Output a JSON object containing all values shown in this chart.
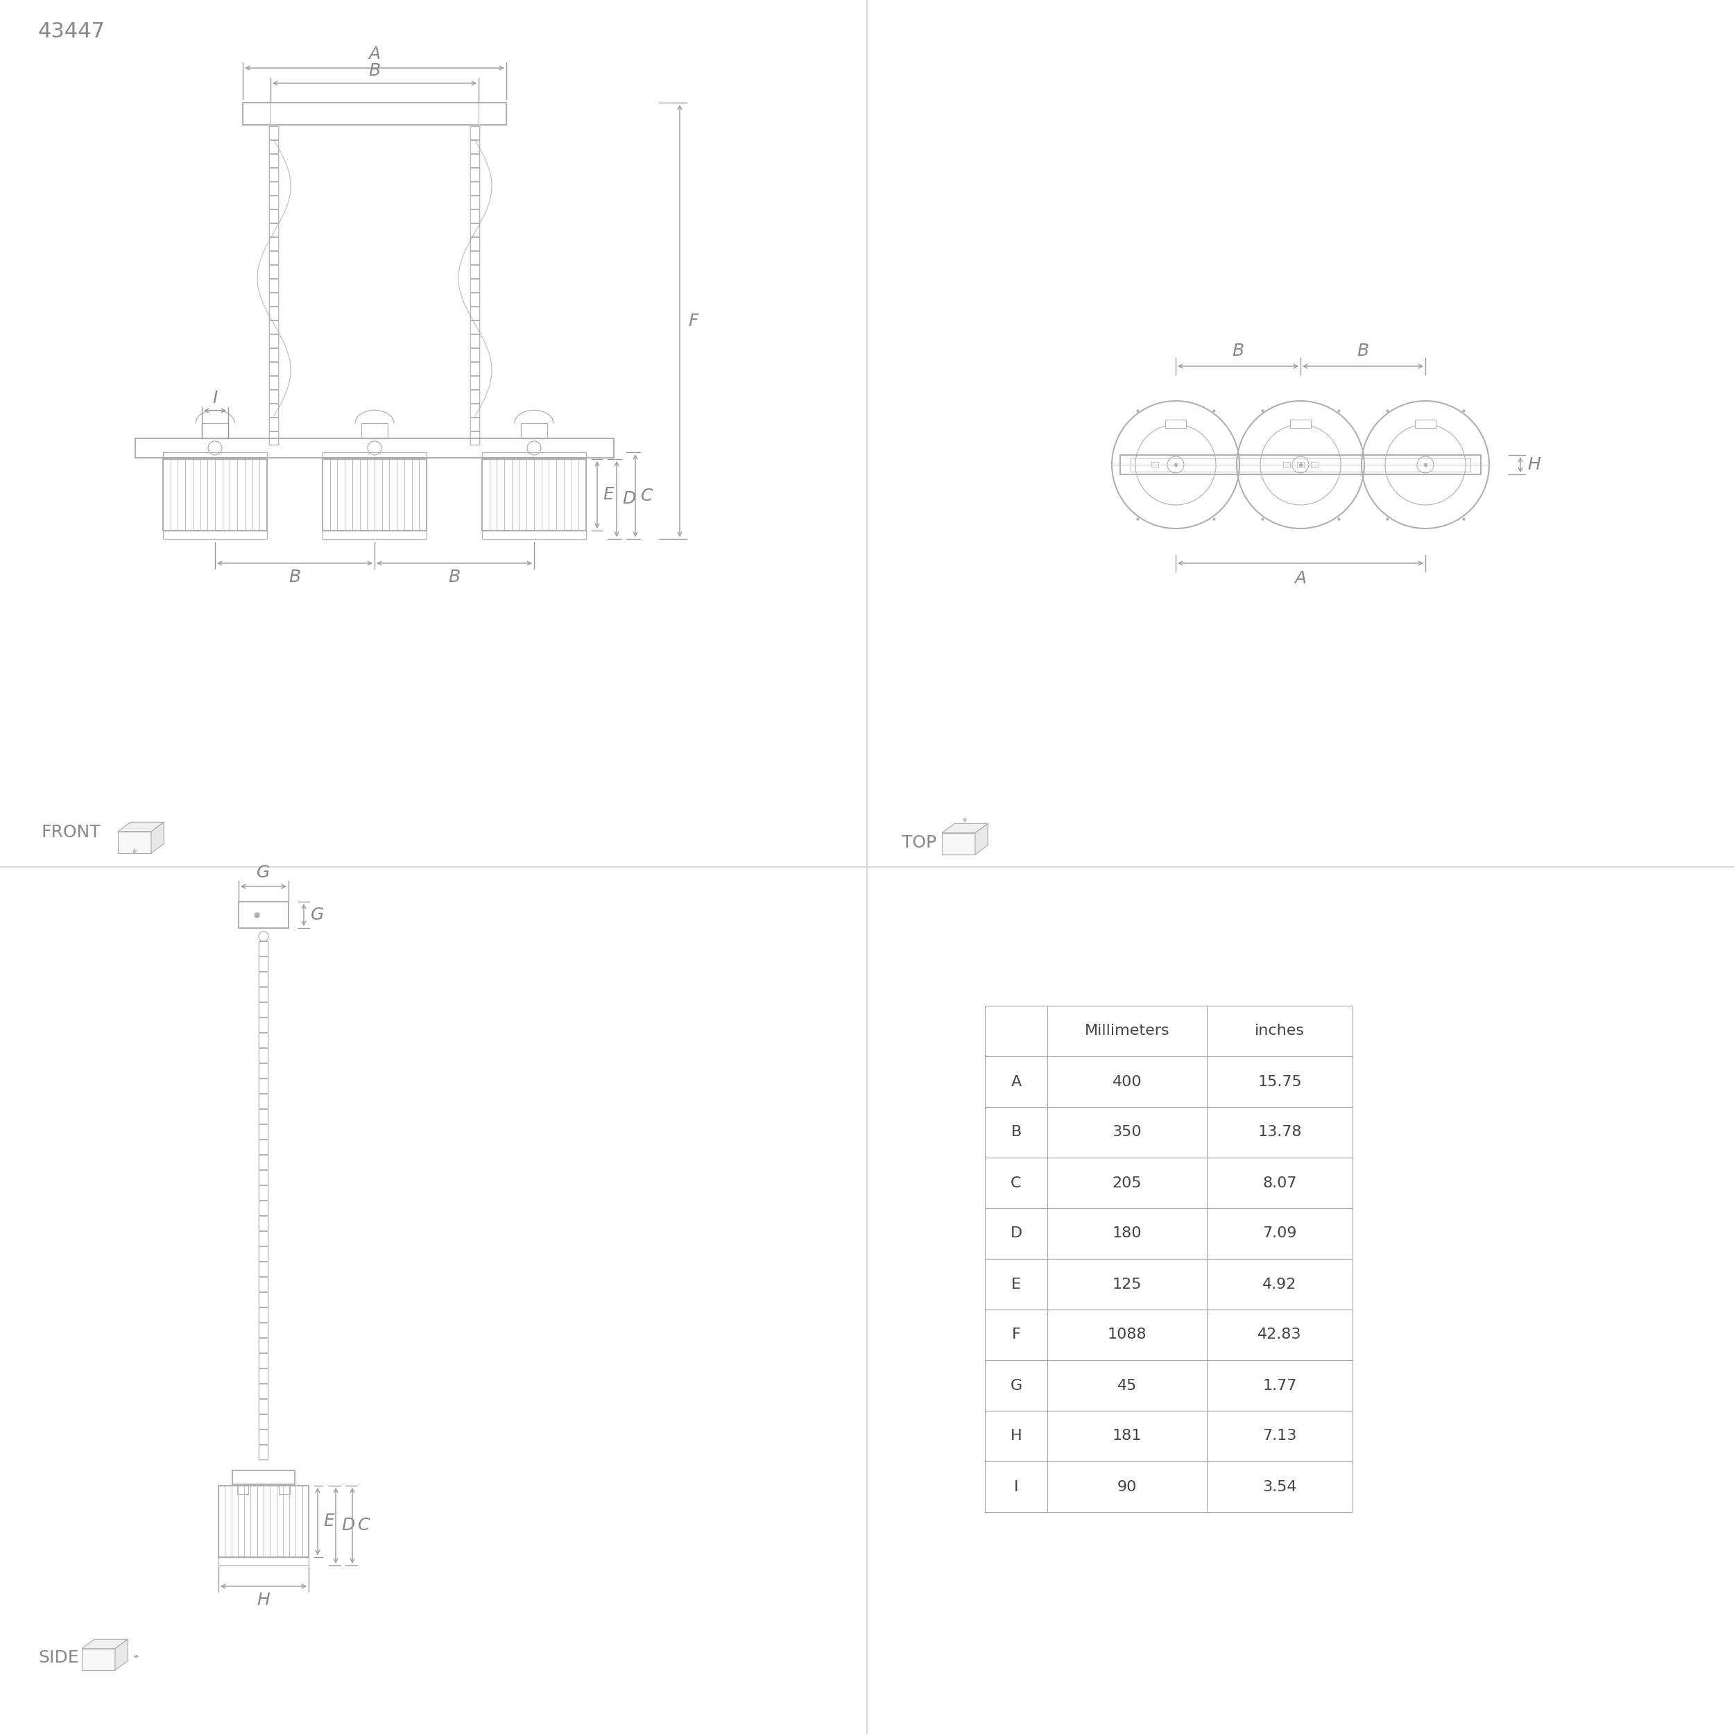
{
  "title_text": "43447",
  "bg_color": "#ffffff",
  "line_color": "#b0b0b0",
  "dim_color": "#999999",
  "text_color": "#888888",
  "table_data": {
    "headers": [
      "",
      "Millimeters",
      "inches"
    ],
    "rows": [
      [
        "A",
        "400",
        "15.75"
      ],
      [
        "B",
        "350",
        "13.78"
      ],
      [
        "C",
        "205",
        "8.07"
      ],
      [
        "D",
        "180",
        "7.09"
      ],
      [
        "E",
        "125",
        "4.92"
      ],
      [
        "F",
        "1088",
        "42.83"
      ],
      [
        "G",
        "45",
        "1.77"
      ],
      [
        "H",
        "181",
        "7.13"
      ],
      [
        "I",
        "90",
        "3.54"
      ]
    ]
  },
  "quadrant_divider_color": "#d0d0d0",
  "font_size_title": 22,
  "font_size_dim_label": 18,
  "font_size_table_header": 16,
  "font_size_table_body": 16,
  "font_size_view_label": 18
}
